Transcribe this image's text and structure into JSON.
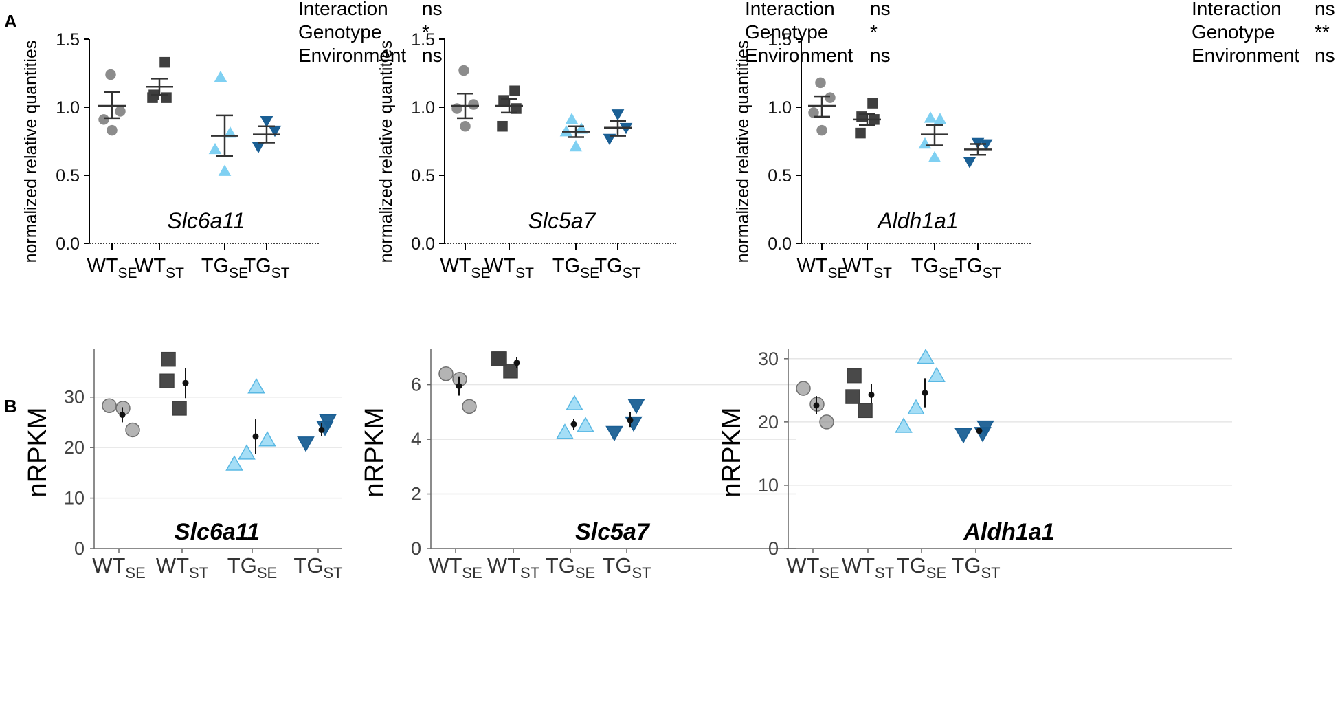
{
  "panel_labels": [
    "A",
    "B"
  ],
  "colors": {
    "wt_se": "#8c8c8c",
    "wt_st": "#3f3f3f",
    "tg_se": "#7fd0f2",
    "tg_st": "#1a5f94",
    "axis_a": "#000000",
    "axis_b": "#666666",
    "grid_b": "#e6e6e6"
  },
  "chart_data": [
    {
      "type": "scatter",
      "panel": "A",
      "gene": "Slc6a11",
      "ylabel": "normalized relative quantities",
      "ylim": [
        0,
        1.5
      ],
      "yticks": [
        "0.0",
        "0.5",
        "1.0",
        "1.5"
      ],
      "stats": [
        {
          "label": "Interaction",
          "value": "ns"
        },
        {
          "label": "Genotype",
          "value": "*"
        },
        {
          "label": "Environment",
          "value": "ns"
        }
      ],
      "groups": [
        {
          "main": "WT",
          "sub": "SE",
          "color_key": "wt_se",
          "marker": "circle",
          "points": [
            1.24,
            0.97,
            0.91,
            0.83
          ],
          "mean": 1.01,
          "error": [
            0.92,
            1.11
          ]
        },
        {
          "main": "WT",
          "sub": "ST",
          "color_key": "wt_st",
          "marker": "square",
          "points": [
            1.33,
            1.09,
            1.07,
            1.07
          ],
          "mean": 1.15,
          "error": [
            1.09,
            1.21
          ]
        },
        {
          "main": "TG",
          "sub": "SE",
          "color_key": "tg_se",
          "marker": "triangle-up",
          "points": [
            1.22,
            0.81,
            0.69,
            0.53
          ],
          "mean": 0.79,
          "error": [
            0.64,
            0.94
          ]
        },
        {
          "main": "TG",
          "sub": "ST",
          "color_key": "tg_st",
          "marker": "triangle-down",
          "points": [
            0.9,
            0.83,
            0.71
          ],
          "mean": 0.8,
          "error": [
            0.74,
            0.86
          ]
        }
      ]
    },
    {
      "type": "scatter",
      "panel": "A",
      "gene": "Slc5a7",
      "ylabel": "normalized relative quantities",
      "ylim": [
        0,
        1.5
      ],
      "yticks": [
        "0.0",
        "0.5",
        "1.0",
        "1.5"
      ],
      "stats": [
        {
          "label": "Interaction",
          "value": "ns"
        },
        {
          "label": "Genotype",
          "value": "*"
        },
        {
          "label": "Environment",
          "value": "ns"
        }
      ],
      "groups": [
        {
          "main": "WT",
          "sub": "SE",
          "color_key": "wt_se",
          "marker": "circle",
          "points": [
            1.27,
            1.02,
            0.99,
            0.86
          ],
          "mean": 1.01,
          "error": [
            0.92,
            1.1
          ]
        },
        {
          "main": "WT",
          "sub": "ST",
          "color_key": "wt_st",
          "marker": "square",
          "points": [
            1.12,
            1.05,
            0.99,
            0.86
          ],
          "mean": 1.01,
          "error": [
            0.96,
            1.06
          ]
        },
        {
          "main": "TG",
          "sub": "SE",
          "color_key": "tg_se",
          "marker": "triangle-up",
          "points": [
            0.91,
            0.84,
            0.82,
            0.71
          ],
          "mean": 0.82,
          "error": [
            0.78,
            0.86
          ]
        },
        {
          "main": "TG",
          "sub": "ST",
          "color_key": "tg_st",
          "marker": "triangle-down",
          "points": [
            0.95,
            0.85,
            0.77
          ],
          "mean": 0.85,
          "error": [
            0.79,
            0.9
          ]
        }
      ]
    },
    {
      "type": "scatter",
      "panel": "A",
      "gene": "Aldh1a1",
      "ylabel": "normalized relative quantities",
      "ylim": [
        0,
        1.5
      ],
      "yticks": [
        "0.0",
        "0.5",
        "1.0",
        "1.5"
      ],
      "stats": [
        {
          "label": "Interaction",
          "value": "ns"
        },
        {
          "label": "Genotype",
          "value": "**"
        },
        {
          "label": "Environment",
          "value": "ns"
        }
      ],
      "groups": [
        {
          "main": "WT",
          "sub": "SE",
          "color_key": "wt_se",
          "marker": "circle",
          "points": [
            1.18,
            1.07,
            0.96,
            0.83
          ],
          "mean": 1.01,
          "error": [
            0.93,
            1.08
          ]
        },
        {
          "main": "WT",
          "sub": "ST",
          "color_key": "wt_st",
          "marker": "square",
          "points": [
            1.03,
            0.93,
            0.91,
            0.81
          ],
          "mean": 0.91,
          "error": [
            0.87,
            0.95
          ]
        },
        {
          "main": "TG",
          "sub": "SE",
          "color_key": "tg_se",
          "marker": "triangle-up",
          "points": [
            0.92,
            0.91,
            0.73,
            0.63
          ],
          "mean": 0.8,
          "error": [
            0.72,
            0.87
          ]
        },
        {
          "main": "TG",
          "sub": "ST",
          "color_key": "tg_st",
          "marker": "triangle-down",
          "points": [
            0.74,
            0.73,
            0.6
          ],
          "mean": 0.69,
          "error": [
            0.65,
            0.73
          ]
        }
      ]
    },
    {
      "type": "scatter",
      "panel": "B",
      "gene": "Slc6a11",
      "ylabel": "nRPKM",
      "ylim": [
        0,
        39.5
      ],
      "yticks": [
        "0",
        "10",
        "20",
        "30"
      ],
      "groups": [
        {
          "main": "WT",
          "sub": "SE",
          "color_key": "wt_se",
          "marker": "circle",
          "points": [
            28.3,
            27.8,
            23.5
          ],
          "mean": 26.5,
          "error": [
            25.0,
            28.0
          ]
        },
        {
          "main": "WT",
          "sub": "ST",
          "color_key": "wt_st",
          "marker": "square",
          "points": [
            37.5,
            33.2,
            27.8
          ],
          "mean": 32.8,
          "error": [
            29.8,
            35.8
          ]
        },
        {
          "main": "TG",
          "sub": "SE",
          "color_key": "tg_se",
          "marker": "triangle-up",
          "points": [
            32.0,
            21.5,
            18.9,
            16.7
          ],
          "mean": 22.2,
          "error": [
            18.8,
            25.6
          ]
        },
        {
          "main": "TG",
          "sub": "ST",
          "color_key": "tg_st",
          "marker": "triangle-down",
          "points": [
            25.3,
            24.0,
            20.9
          ],
          "mean": 23.5,
          "error": [
            22.2,
            24.8
          ]
        }
      ]
    },
    {
      "type": "scatter",
      "panel": "B",
      "gene": "Slc5a7",
      "ylabel": "nRPKM",
      "ylim": [
        0,
        7.3
      ],
      "yticks": [
        "0",
        "2",
        "4",
        "6"
      ],
      "groups": [
        {
          "main": "WT",
          "sub": "SE",
          "color_key": "wt_se",
          "marker": "circle",
          "points": [
            6.4,
            6.2,
            5.2
          ],
          "mean": 5.95,
          "error": [
            5.6,
            6.3
          ]
        },
        {
          "main": "WT",
          "sub": "ST",
          "color_key": "wt_st",
          "marker": "square",
          "points": [
            6.95,
            6.95,
            6.5
          ],
          "mean": 6.8,
          "error": [
            6.6,
            7.0
          ]
        },
        {
          "main": "TG",
          "sub": "SE",
          "color_key": "tg_se",
          "marker": "triangle-up",
          "points": [
            5.3,
            4.5,
            4.25
          ],
          "mean": 4.55,
          "error": [
            4.35,
            4.75
          ]
        },
        {
          "main": "TG",
          "sub": "ST",
          "color_key": "tg_st",
          "marker": "triangle-down",
          "points": [
            5.25,
            4.6,
            4.25
          ],
          "mean": 4.7,
          "error": [
            4.45,
            5.0
          ]
        }
      ]
    },
    {
      "type": "scatter",
      "panel": "B",
      "gene": "Aldh1a1",
      "ylabel": "nRPKM",
      "ylim": [
        0,
        31.5
      ],
      "yticks": [
        "0",
        "10",
        "20",
        "30"
      ],
      "groups": [
        {
          "main": "WT",
          "sub": "SE",
          "color_key": "wt_se",
          "marker": "circle",
          "points": [
            25.3,
            22.8,
            20.0
          ],
          "mean": 22.6,
          "error": [
            21.2,
            24.1
          ]
        },
        {
          "main": "WT",
          "sub": "ST",
          "color_key": "wt_st",
          "marker": "square",
          "points": [
            27.3,
            24.0,
            21.8
          ],
          "mean": 24.3,
          "error": [
            22.9,
            26.0
          ]
        },
        {
          "main": "TG",
          "sub": "SE",
          "color_key": "tg_se",
          "marker": "triangle-up",
          "points": [
            30.2,
            27.3,
            22.2,
            19.3
          ],
          "mean": 24.6,
          "error": [
            22.3,
            26.9
          ]
        },
        {
          "main": "TG",
          "sub": "ST",
          "color_key": "tg_st",
          "marker": "triangle-down",
          "points": [
            19.2,
            18.2,
            18.0
          ],
          "mean": 18.6,
          "error": [
            18.3,
            18.9
          ]
        }
      ]
    }
  ]
}
